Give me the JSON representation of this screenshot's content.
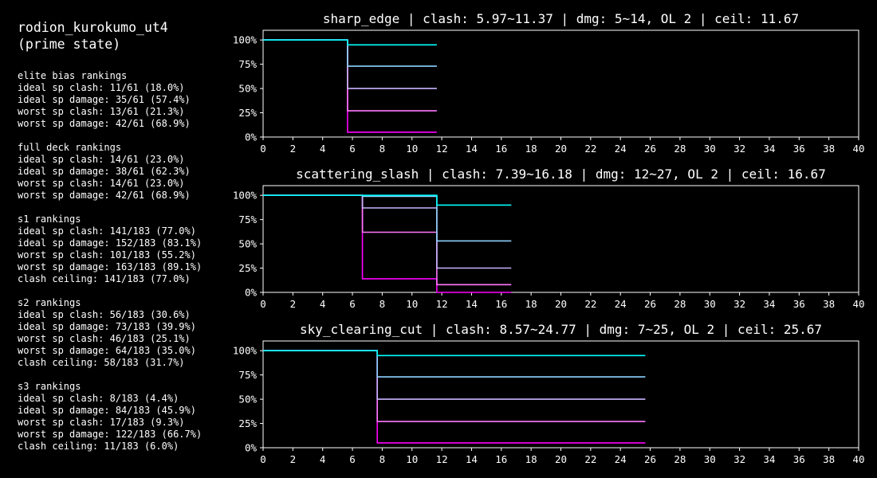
{
  "sidebar": {
    "title_line1": "rodion_kurokumo_ut4",
    "title_line2": "(prime state)",
    "sections": [
      {
        "heading": "elite bias rankings",
        "lines": [
          "ideal sp clash: 11/61 (18.0%)",
          "ideal sp damage: 35/61 (57.4%)",
          "worst sp clash: 13/61 (21.3%)",
          "worst sp damage: 42/61 (68.9%)"
        ]
      },
      {
        "heading": "full deck rankings",
        "lines": [
          "ideal sp clash: 14/61 (23.0%)",
          "ideal sp damage: 38/61 (62.3%)",
          "worst sp clash: 14/61 (23.0%)",
          "worst sp damage: 42/61 (68.9%)"
        ]
      },
      {
        "heading": "s1 rankings",
        "lines": [
          "ideal sp clash: 141/183 (77.0%)",
          "ideal sp damage: 152/183 (83.1%)",
          "worst sp clash: 101/183 (55.2%)",
          "worst sp damage: 163/183 (89.1%)",
          "clash ceiling: 141/183 (77.0%)"
        ]
      },
      {
        "heading": "s2 rankings",
        "lines": [
          "ideal sp clash: 56/183 (30.6%)",
          "ideal sp damage: 73/183 (39.9%)",
          "worst sp clash: 46/183 (25.1%)",
          "worst sp damage: 64/183 (35.0%)",
          "clash ceiling: 58/183 (31.7%)"
        ]
      },
      {
        "heading": "s3 rankings",
        "lines": [
          "ideal sp clash: 8/183 (4.4%)",
          "ideal sp damage: 84/183 (45.9%)",
          "worst sp clash: 17/183 (9.3%)",
          "worst sp damage: 122/183 (66.7%)",
          "clash ceiling: 11/183 (6.0%)"
        ]
      }
    ]
  },
  "colors": [
    "#00ffff",
    "#8cd2ff",
    "#c8b4ff",
    "#ff78ff",
    "#ff00ff"
  ],
  "chart_data": [
    {
      "type": "line",
      "step": true,
      "title": "sharp_edge | clash: 5.97~11.37 | dmg: 5~14, OL 2 | ceil: 11.67",
      "xlim": [
        0,
        40
      ],
      "ylim": [
        0,
        1.1
      ],
      "x_ticks": [
        0,
        2,
        4,
        6,
        8,
        10,
        12,
        14,
        16,
        18,
        20,
        22,
        24,
        26,
        28,
        30,
        32,
        34,
        36,
        38,
        40
      ],
      "y_ticks": [
        "0%",
        "25%",
        "50%",
        "75%",
        "100%"
      ],
      "series": [
        {
          "points": [
            [
              0,
              1.0
            ],
            [
              5.67,
              1.0
            ],
            [
              5.67,
              0.95
            ],
            [
              11.67,
              0.95
            ]
          ]
        },
        {
          "points": [
            [
              0,
              1.0
            ],
            [
              5.67,
              1.0
            ],
            [
              5.67,
              0.73
            ],
            [
              11.67,
              0.73
            ]
          ]
        },
        {
          "points": [
            [
              0,
              1.0
            ],
            [
              5.67,
              1.0
            ],
            [
              5.67,
              0.5
            ],
            [
              11.67,
              0.5
            ]
          ]
        },
        {
          "points": [
            [
              0,
              1.0
            ],
            [
              5.67,
              1.0
            ],
            [
              5.67,
              0.27
            ],
            [
              11.67,
              0.27
            ]
          ]
        },
        {
          "points": [
            [
              0,
              1.0
            ],
            [
              5.67,
              1.0
            ],
            [
              5.67,
              0.05
            ],
            [
              11.67,
              0.05
            ]
          ]
        }
      ]
    },
    {
      "type": "line",
      "step": true,
      "title": "scattering_slash | clash: 7.39~16.18 | dmg: 12~27, OL 2 | ceil: 16.67",
      "xlim": [
        0,
        40
      ],
      "ylim": [
        0,
        1.1
      ],
      "x_ticks": [
        0,
        2,
        4,
        6,
        8,
        10,
        12,
        14,
        16,
        18,
        20,
        22,
        24,
        26,
        28,
        30,
        32,
        34,
        36,
        38,
        40
      ],
      "y_ticks": [
        "0%",
        "25%",
        "50%",
        "75%",
        "100%"
      ],
      "series": [
        {
          "points": [
            [
              0,
              1.0
            ],
            [
              6.67,
              1.0
            ],
            [
              6.67,
              1.0
            ],
            [
              11.67,
              1.0
            ],
            [
              11.67,
              0.9
            ],
            [
              16.67,
              0.9
            ]
          ]
        },
        {
          "points": [
            [
              0,
              1.0
            ],
            [
              6.67,
              1.0
            ],
            [
              6.67,
              0.99
            ],
            [
              11.67,
              0.99
            ],
            [
              11.67,
              0.53
            ],
            [
              16.67,
              0.53
            ]
          ]
        },
        {
          "points": [
            [
              0,
              1.0
            ],
            [
              6.67,
              1.0
            ],
            [
              6.67,
              0.87
            ],
            [
              11.67,
              0.87
            ],
            [
              11.67,
              0.25
            ],
            [
              16.67,
              0.25
            ]
          ]
        },
        {
          "points": [
            [
              0,
              1.0
            ],
            [
              6.67,
              1.0
            ],
            [
              6.67,
              0.62
            ],
            [
              11.67,
              0.62
            ],
            [
              11.67,
              0.08
            ],
            [
              16.67,
              0.08
            ]
          ]
        },
        {
          "points": [
            [
              0,
              1.0
            ],
            [
              6.67,
              1.0
            ],
            [
              6.67,
              0.14
            ],
            [
              11.67,
              0.14
            ],
            [
              11.67,
              0.0
            ],
            [
              16.67,
              0.0
            ]
          ]
        }
      ]
    },
    {
      "type": "line",
      "step": true,
      "title": "sky_clearing_cut | clash: 8.57~24.77 | dmg: 7~25, OL 2 | ceil: 25.67",
      "xlim": [
        0,
        40
      ],
      "ylim": [
        0,
        1.1
      ],
      "x_ticks": [
        0,
        2,
        4,
        6,
        8,
        10,
        12,
        14,
        16,
        18,
        20,
        22,
        24,
        26,
        28,
        30,
        32,
        34,
        36,
        38,
        40
      ],
      "y_ticks": [
        "0%",
        "25%",
        "50%",
        "75%",
        "100%"
      ],
      "series": [
        {
          "points": [
            [
              0,
              1.0
            ],
            [
              7.67,
              1.0
            ],
            [
              7.67,
              0.95
            ],
            [
              25.67,
              0.95
            ]
          ]
        },
        {
          "points": [
            [
              0,
              1.0
            ],
            [
              7.67,
              1.0
            ],
            [
              7.67,
              0.73
            ],
            [
              25.67,
              0.73
            ]
          ]
        },
        {
          "points": [
            [
              0,
              1.0
            ],
            [
              7.67,
              1.0
            ],
            [
              7.67,
              0.5
            ],
            [
              25.67,
              0.5
            ]
          ]
        },
        {
          "points": [
            [
              0,
              1.0
            ],
            [
              7.67,
              1.0
            ],
            [
              7.67,
              0.27
            ],
            [
              25.67,
              0.27
            ]
          ]
        },
        {
          "points": [
            [
              0,
              1.0
            ],
            [
              7.67,
              1.0
            ],
            [
              7.67,
              0.05
            ],
            [
              25.67,
              0.05
            ]
          ]
        }
      ]
    }
  ]
}
